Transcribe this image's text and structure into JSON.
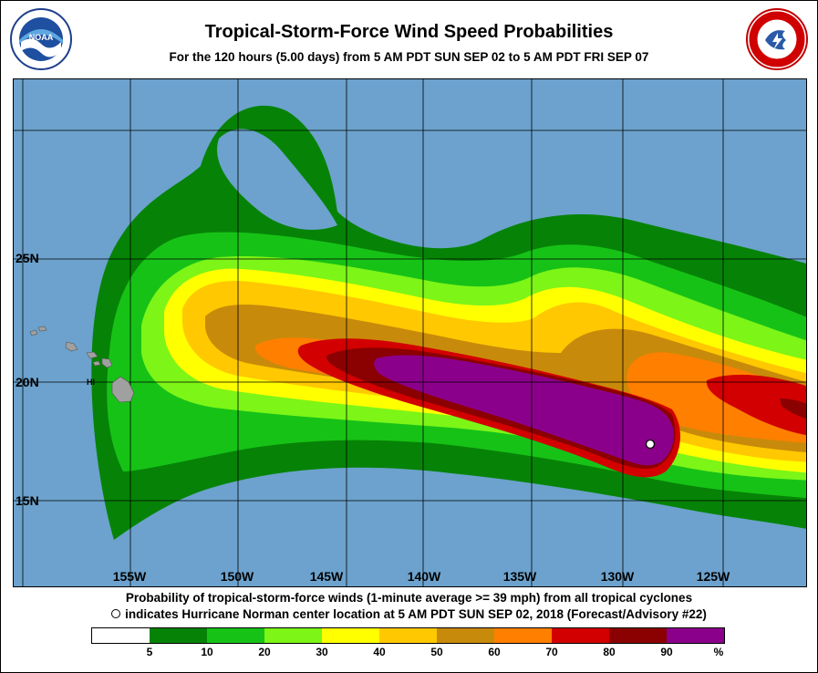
{
  "header": {
    "title": "Tropical-Storm-Force Wind Speed Probabilities",
    "subtitle": "For the 120 hours (5.00 days) from 5 AM PDT SUN SEP 02 to 5 AM PDT FRI SEP 07"
  },
  "logos": {
    "left": "NOAA",
    "right": "NATIONAL WEATHER SERVICE"
  },
  "map": {
    "latitude_labels": [
      "25N",
      "20N",
      "15N"
    ],
    "longitude_labels": [
      "155W",
      "150W",
      "145W",
      "140W",
      "135W",
      "130W",
      "125W"
    ],
    "place_label": "HI",
    "ocean_color": "#6ca2cd",
    "land_color": "#a0a0a0",
    "storm_center": "Hurricane Norman center location"
  },
  "caption": {
    "line1": "Probability of tropical-storm-force winds (1-minute average >= 39 mph) from all tropical cyclones",
    "line2": "indicates Hurricane Norman center location at 5 AM PDT SUN SEP 02, 2018 (Forecast/Advisory #22)"
  },
  "legend": {
    "colors": [
      "#ffffff",
      "#068306",
      "#17c217",
      "#7cf517",
      "#ffff00",
      "#ffc800",
      "#c88a0a",
      "#ff7f00",
      "#d20000",
      "#8b0000",
      "#8b008b"
    ],
    "labels": [
      "5",
      "10",
      "20",
      "30",
      "40",
      "50",
      "60",
      "70",
      "80",
      "90",
      "%"
    ]
  }
}
